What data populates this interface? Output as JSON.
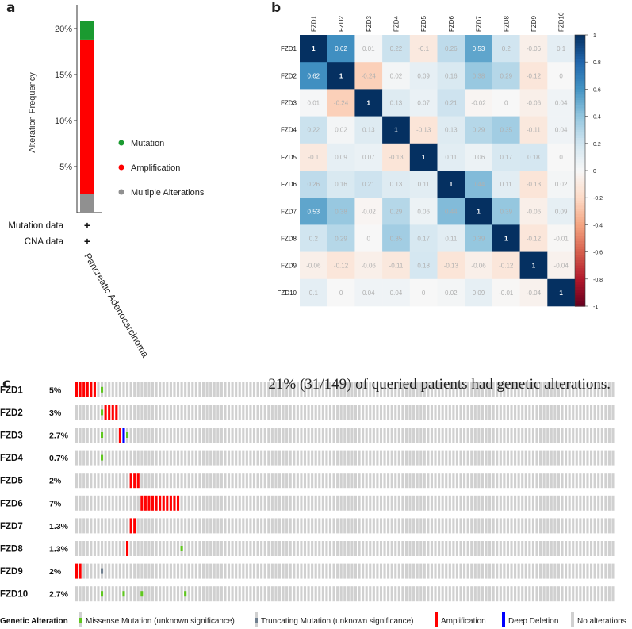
{
  "panels": {
    "a": "a",
    "b": "b",
    "c": "c"
  },
  "chart_data": [
    {
      "type": "bar",
      "panel": "a",
      "ylabel": "Alteration Frequency",
      "ytick_labels": [
        "5%",
        "10%",
        "15%",
        "20%"
      ],
      "ytick_values": [
        5,
        10,
        15,
        20
      ],
      "ylim": [
        0,
        22
      ],
      "categories": [
        "Pancreatic Adenocarcinoma"
      ],
      "series": [
        {
          "name": "Multiple Alterations",
          "color": "#909090",
          "values": [
            2
          ]
        },
        {
          "name": "Amplification",
          "color": "#ff0000",
          "values": [
            16.8
          ]
        },
        {
          "name": "Mutation",
          "color": "#1a9a30",
          "values": [
            2
          ]
        }
      ],
      "legend": [
        "Mutation",
        "Amplification",
        "Multiple Alterations"
      ],
      "legend_colors": [
        "#1a9a30",
        "#ff0000",
        "#909090"
      ],
      "row_labels": [
        "Mutation data",
        "CNA data"
      ],
      "row_marks": [
        "+",
        "+"
      ]
    },
    {
      "type": "heatmap",
      "panel": "b",
      "labels": [
        "FZD1",
        "FZD2",
        "FZD3",
        "FZD4",
        "FZD5",
        "FZD6",
        "FZD7",
        "FZD8",
        "FZD9",
        "FZD10"
      ],
      "matrix": [
        [
          1,
          0.62,
          0.01,
          0.22,
          -0.1,
          0.26,
          0.53,
          0.2,
          -0.06,
          0.1
        ],
        [
          0.62,
          1,
          -0.24,
          0.02,
          0.09,
          0.16,
          0.38,
          0.29,
          -0.12,
          0
        ],
        [
          0.01,
          -0.24,
          1,
          0.13,
          0.07,
          0.21,
          -0.02,
          0,
          -0.06,
          0.04
        ],
        [
          0.22,
          0.02,
          0.13,
          1,
          -0.13,
          0.13,
          0.29,
          0.35,
          -0.11,
          0.04
        ],
        [
          -0.1,
          0.09,
          0.07,
          -0.13,
          1,
          0.11,
          0.06,
          0.17,
          0.18,
          0
        ],
        [
          0.26,
          0.16,
          0.21,
          0.13,
          0.11,
          1,
          0.44,
          0.11,
          -0.13,
          0.02
        ],
        [
          0.53,
          0.38,
          -0.02,
          0.29,
          0.06,
          0.44,
          1,
          0.39,
          -0.06,
          0.09
        ],
        [
          0.2,
          0.29,
          0,
          0.35,
          0.17,
          0.11,
          0.39,
          1,
          -0.12,
          -0.01
        ],
        [
          -0.06,
          -0.12,
          -0.06,
          -0.11,
          0.18,
          -0.13,
          -0.06,
          -0.12,
          1,
          -0.04
        ],
        [
          0.1,
          0,
          0.04,
          0.04,
          0,
          0.02,
          0.09,
          -0.01,
          -0.04,
          1
        ]
      ],
      "colorbar_ticks": [
        1,
        0.8,
        0.6,
        0.4,
        0.2,
        0,
        -0.2,
        -0.4,
        -0.6,
        -0.8,
        -1
      ],
      "colorbar_labels": [
        "1",
        "0.8",
        "0.6",
        "0.4",
        "0.2",
        "0",
        "-0.2",
        "-0.4",
        "-0.6",
        "-0.8",
        "-1"
      ],
      "vmin": -1,
      "vmax": 1
    },
    {
      "type": "oncoprint",
      "panel": "c",
      "headline": "21%  (31/149) of queried patients had genetic alterations.",
      "n_samples": 149,
      "genes": [
        {
          "name": "FZD1",
          "pct": "5%",
          "alterations": [
            {
              "samples": [
                0,
                1,
                2,
                3,
                4,
                5
              ],
              "type": "amp"
            },
            {
              "samples": [
                7
              ],
              "type": "missense"
            }
          ]
        },
        {
          "name": "FZD2",
          "pct": "3%",
          "alterations": [
            {
              "samples": [
                7
              ],
              "type": "missense"
            },
            {
              "samples": [
                8,
                9,
                10,
                11
              ],
              "type": "amp"
            }
          ]
        },
        {
          "name": "FZD3",
          "pct": "2.7%",
          "alterations": [
            {
              "samples": [
                7
              ],
              "type": "missense"
            },
            {
              "samples": [
                12
              ],
              "type": "amp"
            },
            {
              "samples": [
                13
              ],
              "type": "deep_deletion"
            },
            {
              "samples": [
                14
              ],
              "type": "missense"
            }
          ]
        },
        {
          "name": "FZD4",
          "pct": "0.7%",
          "alterations": [
            {
              "samples": [
                7
              ],
              "type": "missense"
            }
          ]
        },
        {
          "name": "FZD5",
          "pct": "2%",
          "alterations": [
            {
              "samples": [
                15,
                16,
                17
              ],
              "type": "amp"
            }
          ]
        },
        {
          "name": "FZD6",
          "pct": "7%",
          "alterations": [
            {
              "samples": [
                18,
                19,
                20,
                21,
                22,
                23,
                24,
                25,
                26,
                27,
                28
              ],
              "type": "amp"
            }
          ]
        },
        {
          "name": "FZD7",
          "pct": "1.3%",
          "alterations": [
            {
              "samples": [
                15,
                16
              ],
              "type": "amp"
            }
          ]
        },
        {
          "name": "FZD8",
          "pct": "1.3%",
          "alterations": [
            {
              "samples": [
                14
              ],
              "type": "amp"
            },
            {
              "samples": [
                29
              ],
              "type": "missense"
            }
          ]
        },
        {
          "name": "FZD9",
          "pct": "2%",
          "alterations": [
            {
              "samples": [
                0,
                1
              ],
              "type": "amp"
            },
            {
              "samples": [
                7
              ],
              "type": "truncating"
            }
          ]
        },
        {
          "name": "FZD10",
          "pct": "2.7%",
          "alterations": [
            {
              "samples": [
                7
              ],
              "type": "missense"
            },
            {
              "samples": [
                13
              ],
              "type": "missense"
            },
            {
              "samples": [
                18
              ],
              "type": "missense"
            },
            {
              "samples": [
                30
              ],
              "type": "missense"
            }
          ]
        }
      ],
      "legend_title": "Genetic Alteration",
      "legend": [
        {
          "key": "missense",
          "label": "Missense Mutation (unknown significance)",
          "color": "#5fc71e"
        },
        {
          "key": "truncating",
          "label": "Truncating Mutation (unknown significance)",
          "color": "#708090"
        },
        {
          "key": "amp",
          "label": "Amplification",
          "color": "#ff0000"
        },
        {
          "key": "deep_deletion",
          "label": "Deep Deletion",
          "color": "#0000ff"
        },
        {
          "key": "none",
          "label": "No alterations",
          "color": "#d0d0d0"
        }
      ]
    }
  ]
}
